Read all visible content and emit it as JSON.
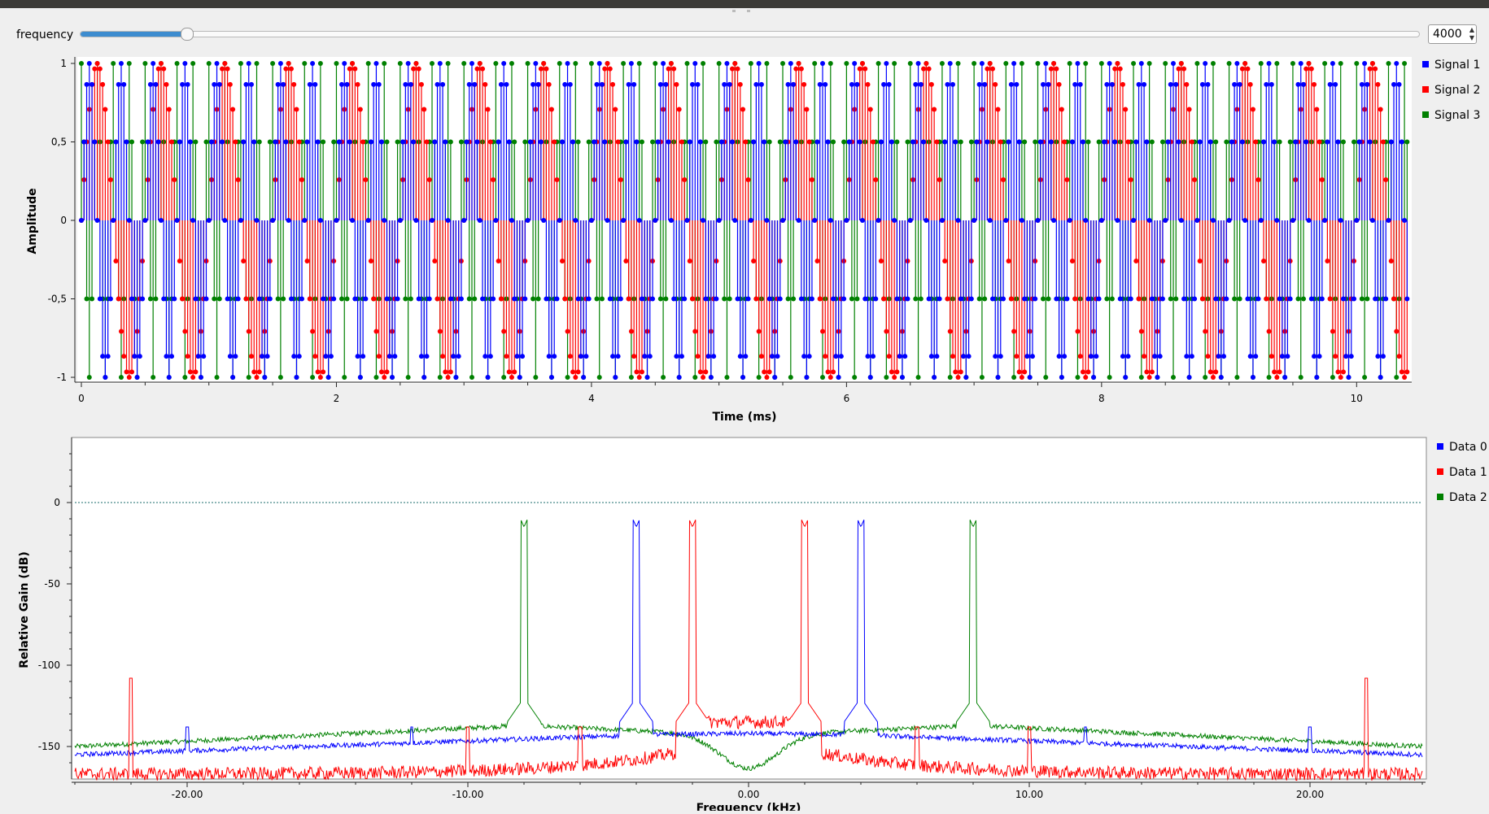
{
  "window": {
    "title": ""
  },
  "control": {
    "label": "frequency",
    "value": "4000",
    "slider_fraction": 0.079
  },
  "time_plot": {
    "ylabel": "Amplitude",
    "xlabel": "Time (ms)",
    "yticks": [
      "1",
      "0,5",
      "0",
      "-0,5",
      "-1"
    ],
    "xticks": [
      "0",
      "2",
      "4",
      "6",
      "8",
      "10"
    ],
    "legend": [
      {
        "label": "Signal 1",
        "color": "#0000ff"
      },
      {
        "label": "Signal 2",
        "color": "#ff0000"
      },
      {
        "label": "Signal 3",
        "color": "#008000"
      }
    ]
  },
  "freq_plot": {
    "ylabel": "Relative Gain (dB)",
    "xlabel": "Frequency (kHz)",
    "yticks": [
      "0",
      "-50",
      "-100",
      "-150"
    ],
    "xticks": [
      "-20.00",
      "-10.00",
      "0.00",
      "10.00",
      "20.00"
    ],
    "legend": [
      {
        "label": "Data 0",
        "color": "#0000ff"
      },
      {
        "label": "Data 1",
        "color": "#ff0000"
      },
      {
        "label": "Data 2",
        "color": "#008000"
      }
    ]
  },
  "chart_data": [
    {
      "type": "scatter",
      "title": "",
      "xlabel": "Time (ms)",
      "ylabel": "Amplitude",
      "xlim": [
        0,
        10.4
      ],
      "ylim": [
        -1,
        1
      ],
      "style": "stem",
      "sample_rate_khz": 48,
      "series": [
        {
          "name": "Signal 1",
          "color": "#0000ff",
          "frequency_khz": 4
        },
        {
          "name": "Signal 2",
          "color": "#ff0000",
          "frequency_khz": 2
        },
        {
          "name": "Signal 3",
          "color": "#008000",
          "frequency_khz": 8
        }
      ],
      "legend": "right",
      "grid": false
    },
    {
      "type": "line",
      "title": "",
      "xlabel": "Frequency (kHz)",
      "ylabel": "Relative Gain (dB)",
      "xlim": [
        -24,
        24
      ],
      "ylim": [
        -170,
        40
      ],
      "reference_line_db": 0,
      "series": [
        {
          "name": "Data 0",
          "color": "#0000ff",
          "peaks_khz": [
            -4,
            4
          ],
          "peak_db": -15,
          "spurs_khz": [
            -20,
            -12,
            12,
            20
          ],
          "floor_db": -152
        },
        {
          "name": "Data 1",
          "color": "#ff0000",
          "peaks_khz": [
            -2,
            2
          ],
          "peak_db": -15,
          "spurs_khz": [
            -22,
            -10,
            -6,
            6,
            10,
            22
          ],
          "floor_db": -165
        },
        {
          "name": "Data 2",
          "color": "#008000",
          "peaks_khz": [
            -8,
            8
          ],
          "peak_db": -15,
          "spurs_khz": [],
          "floor_db": -150
        }
      ],
      "legend": "right",
      "grid": false
    }
  ]
}
